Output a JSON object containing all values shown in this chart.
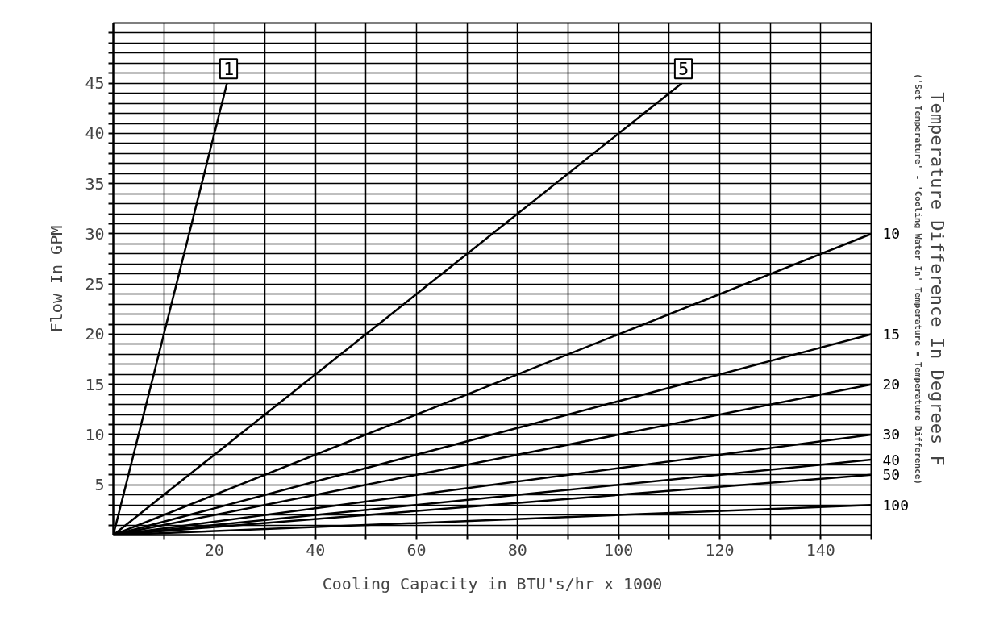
{
  "chart_data": {
    "type": "line",
    "xlabel": "Cooling Capacity in BTU's/hr x 1000",
    "ylabel": "Flow In GPM",
    "y2label": "Temperature Difference In Degrees F",
    "annotations": [
      "('Set Temperature' - 'Cooling Water In' Temperature = Temperature Difference)"
    ],
    "xlim": [
      0,
      150
    ],
    "ylim": [
      0,
      51
    ],
    "xticks": [
      {
        "value": 10,
        "label": null
      },
      20,
      {
        "value": 30,
        "label": null
      },
      40,
      {
        "value": 50,
        "label": null
      },
      60,
      {
        "value": 70,
        "label": null
      },
      80,
      {
        "value": 90,
        "label": null
      },
      100,
      {
        "value": 110,
        "label": null
      },
      120,
      {
        "value": 130,
        "label": null
      },
      140,
      {
        "value": 150,
        "label": null
      }
    ],
    "yticks": [
      {
        "value": 1,
        "label": null
      },
      {
        "value": 2,
        "label": null
      },
      {
        "value": 3,
        "label": null
      },
      {
        "value": 4,
        "label": null
      },
      5,
      {
        "value": 6,
        "label": null
      },
      {
        "value": 7,
        "label": null
      },
      {
        "value": 8,
        "label": null
      },
      {
        "value": 9,
        "label": null
      },
      10,
      {
        "value": 11,
        "label": null
      },
      {
        "value": 12,
        "label": null
      },
      {
        "value": 13,
        "label": null
      },
      {
        "value": 14,
        "label": null
      },
      15,
      {
        "value": 16,
        "label": null
      },
      {
        "value": 17,
        "label": null
      },
      {
        "value": 18,
        "label": null
      },
      {
        "value": 19,
        "label": null
      },
      20,
      {
        "value": 21,
        "label": null
      },
      {
        "value": 22,
        "label": null
      },
      {
        "value": 23,
        "label": null
      },
      {
        "value": 24,
        "label": null
      },
      25,
      {
        "value": 26,
        "label": null
      },
      {
        "value": 27,
        "label": null
      },
      {
        "value": 28,
        "label": null
      },
      {
        "value": 29,
        "label": null
      },
      30,
      {
        "value": 31,
        "label": null
      },
      {
        "value": 32,
        "label": null
      },
      {
        "value": 33,
        "label": null
      },
      {
        "value": 34,
        "label": null
      },
      35,
      {
        "value": 36,
        "label": null
      },
      {
        "value": 37,
        "label": null
      },
      {
        "value": 38,
        "label": null
      },
      {
        "value": 39,
        "label": null
      },
      40,
      {
        "value": 41,
        "label": null
      },
      {
        "value": 42,
        "label": null
      },
      {
        "value": 43,
        "label": null
      },
      {
        "value": 44,
        "label": null
      },
      45,
      {
        "value": 46,
        "label": null
      },
      {
        "value": 47,
        "label": null
      },
      {
        "value": 48,
        "label": null
      },
      {
        "value": 49,
        "label": null
      },
      {
        "value": 50,
        "label": null
      }
    ],
    "grid": true,
    "marker": "none",
    "line_style": "solid",
    "series": [
      {
        "name": "1",
        "color": "#000000",
        "x": [
          0,
          22.5
        ],
        "values": [
          0,
          45
        ]
      },
      {
        "name": "5",
        "color": "#000000",
        "x": [
          0,
          112.5
        ],
        "values": [
          0,
          45
        ]
      },
      {
        "name": "10",
        "color": "#000000",
        "x": [
          0,
          150
        ],
        "values": [
          0,
          30
        ]
      },
      {
        "name": "15",
        "color": "#000000",
        "x": [
          0,
          150
        ],
        "values": [
          0,
          20
        ]
      },
      {
        "name": "20",
        "color": "#000000",
        "x": [
          0,
          150
        ],
        "values": [
          0,
          15
        ]
      },
      {
        "name": "30",
        "color": "#000000",
        "x": [
          0,
          150
        ],
        "values": [
          0,
          10
        ]
      },
      {
        "name": "40",
        "color": "#000000",
        "x": [
          0,
          150
        ],
        "values": [
          0,
          7.5
        ]
      },
      {
        "name": "50",
        "color": "#000000",
        "x": [
          0,
          150
        ],
        "values": [
          0,
          6
        ]
      },
      {
        "name": "100",
        "color": "#000000",
        "x": [
          0,
          150
        ],
        "values": [
          0,
          3
        ]
      }
    ]
  }
}
